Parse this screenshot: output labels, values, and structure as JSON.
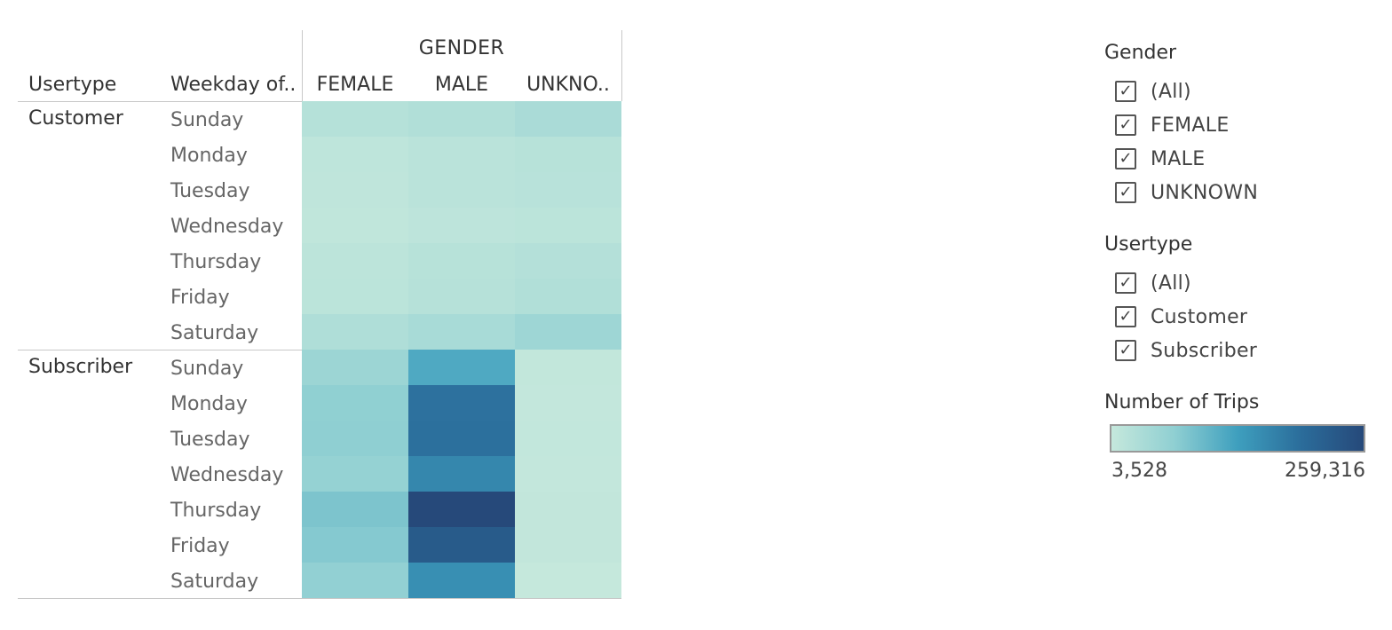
{
  "header": {
    "usertype_col": "Usertype",
    "weekday_col": "Weekday of..",
    "gender_title": "GENDER",
    "gender_cols": [
      "FEMALE",
      "MALE",
      "UNKNO.."
    ]
  },
  "usertypes": [
    "Customer",
    "Subscriber"
  ],
  "weekdays": [
    "Sunday",
    "Monday",
    "Tuesday",
    "Wednesday",
    "Thursday",
    "Friday",
    "Saturday"
  ],
  "filters": {
    "gender": {
      "title": "Gender",
      "items": [
        {
          "label": "(All)",
          "checked": true
        },
        {
          "label": "FEMALE",
          "checked": true
        },
        {
          "label": "MALE",
          "checked": true
        },
        {
          "label": "UNKNOWN",
          "checked": true
        }
      ]
    },
    "usertype": {
      "title": "Usertype",
      "items": [
        {
          "label": "(All)",
          "checked": true
        },
        {
          "label": "Customer",
          "checked": true
        },
        {
          "label": "Subscriber",
          "checked": true
        }
      ]
    }
  },
  "legend": {
    "title": "Number of Trips",
    "min_label": "3,528",
    "max_label": "259,316",
    "min": 3528,
    "max": 259316,
    "colors": [
      "#c5e8dc",
      "#8fcfd2",
      "#3e9fbe",
      "#2b6d9b",
      "#26497a"
    ]
  },
  "chart_data": {
    "type": "heatmap",
    "x_labels": [
      "FEMALE",
      "MALE",
      "UNKNO.."
    ],
    "y_groups": [
      "Customer",
      "Subscriber"
    ],
    "y_labels": [
      "Sunday",
      "Monday",
      "Tuesday",
      "Wednesday",
      "Thursday",
      "Friday",
      "Saturday"
    ],
    "rows": [
      {
        "usertype": "Customer",
        "weekday": "Sunday",
        "values": [
          22000,
          27000,
          36000
        ]
      },
      {
        "usertype": "Customer",
        "weekday": "Monday",
        "values": [
          12000,
          17000,
          20000
        ]
      },
      {
        "usertype": "Customer",
        "weekday": "Tuesday",
        "values": [
          11000,
          16000,
          19000
        ]
      },
      {
        "usertype": "Customer",
        "weekday": "Wednesday",
        "values": [
          9000,
          13000,
          15000
        ]
      },
      {
        "usertype": "Customer",
        "weekday": "Thursday",
        "values": [
          14000,
          20000,
          24000
        ]
      },
      {
        "usertype": "Customer",
        "weekday": "Friday",
        "values": [
          15000,
          21000,
          27000
        ]
      },
      {
        "usertype": "Customer",
        "weekday": "Saturday",
        "values": [
          30000,
          38000,
          50000
        ]
      },
      {
        "usertype": "Subscriber",
        "weekday": "Sunday",
        "values": [
          52000,
          118000,
          7000
        ]
      },
      {
        "usertype": "Subscriber",
        "weekday": "Monday",
        "values": [
          66000,
          190000,
          6000
        ]
      },
      {
        "usertype": "Subscriber",
        "weekday": "Tuesday",
        "values": [
          67000,
          192000,
          6500
        ]
      },
      {
        "usertype": "Subscriber",
        "weekday": "Wednesday",
        "values": [
          60000,
          162000,
          6000
        ]
      },
      {
        "usertype": "Subscriber",
        "weekday": "Thursday",
        "values": [
          82000,
          259316,
          7500
        ]
      },
      {
        "usertype": "Subscriber",
        "weekday": "Friday",
        "values": [
          75000,
          228000,
          7500
        ]
      },
      {
        "usertype": "Subscriber",
        "weekday": "Saturday",
        "values": [
          64000,
          152000,
          3528
        ]
      }
    ],
    "color_range": [
      3528,
      259316
    ]
  }
}
